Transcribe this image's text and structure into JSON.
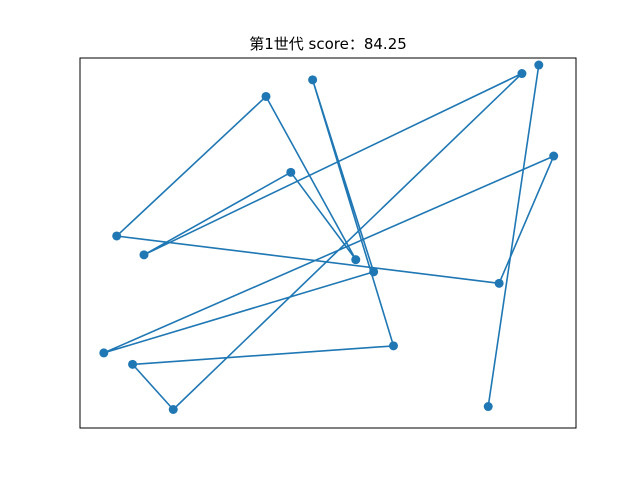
{
  "chart_data": {
    "type": "line",
    "title": "第1世代 score：84.25",
    "xlabel": "",
    "ylabel": "",
    "xlim": [
      0,
      1
    ],
    "ylim": [
      0,
      1
    ],
    "grid": false,
    "axes_visible": false,
    "color": "#1f77b4",
    "marker": "circle",
    "points": [
      {
        "x": 0.074,
        "y": 0.519
      },
      {
        "x": 0.375,
        "y": 0.896
      },
      {
        "x": 0.556,
        "y": 0.455
      },
      {
        "x": 0.425,
        "y": 0.691
      },
      {
        "x": 0.129,
        "y": 0.468
      },
      {
        "x": 0.891,
        "y": 0.958
      },
      {
        "x": 0.188,
        "y": 0.05
      },
      {
        "x": 0.106,
        "y": 0.172
      },
      {
        "x": 0.632,
        "y": 0.222
      },
      {
        "x": 0.469,
        "y": 0.941
      },
      {
        "x": 0.592,
        "y": 0.422
      },
      {
        "x": 0.048,
        "y": 0.203
      },
      {
        "x": 0.955,
        "y": 0.735
      },
      {
        "x": 0.845,
        "y": 0.391
      },
      {
        "x": 0.074,
        "y": 0.519
      }
    ],
    "isolated_points": [
      {
        "x": 0.925,
        "y": 0.981
      },
      {
        "x": 0.823,
        "y": 0.058
      }
    ],
    "isolated_segment": [
      {
        "x": 0.925,
        "y": 0.981
      },
      {
        "x": 0.823,
        "y": 0.058
      }
    ]
  }
}
